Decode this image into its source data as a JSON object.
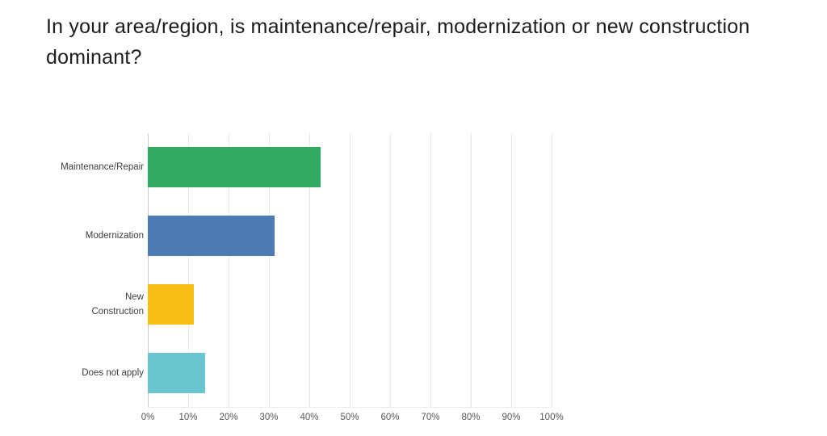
{
  "title": "In your area/region, is maintenance/repair, modernization or new construction dominant?",
  "chart_data": {
    "type": "bar",
    "orientation": "horizontal",
    "title": "In your area/region, is maintenance/repair, modernization or new construction dominant?",
    "categories": [
      "Maintenance/Repair",
      "Modernization",
      "New Construction",
      "Does not apply"
    ],
    "category_labels": [
      "Maintenance/Repair",
      "Modernization",
      "New\nConstruction",
      "Does not apply"
    ],
    "values": [
      42.86,
      31.43,
      11.43,
      14.29
    ],
    "unit": "%",
    "xlim": [
      0,
      100
    ],
    "x_ticks": [
      "0%",
      "10%",
      "20%",
      "30%",
      "40%",
      "50%",
      "60%",
      "70%",
      "80%",
      "90%",
      "100%"
    ],
    "x_tick_values": [
      0,
      10,
      20,
      30,
      40,
      50,
      60,
      70,
      80,
      90,
      100
    ],
    "bar_colors": [
      "#32AA64",
      "#4D7AB5",
      "#F8BD13",
      "#69C5CF"
    ],
    "grid": true,
    "legend_position": "none",
    "ylabel": "",
    "xlabel": ""
  },
  "colors": {
    "background": "#ffffff",
    "gridline": "#e7e8ea",
    "zero_line": "#c9cace",
    "title_text": "#1b1b20",
    "category_text": "#3d3e43",
    "tick_text": "#55565b"
  }
}
